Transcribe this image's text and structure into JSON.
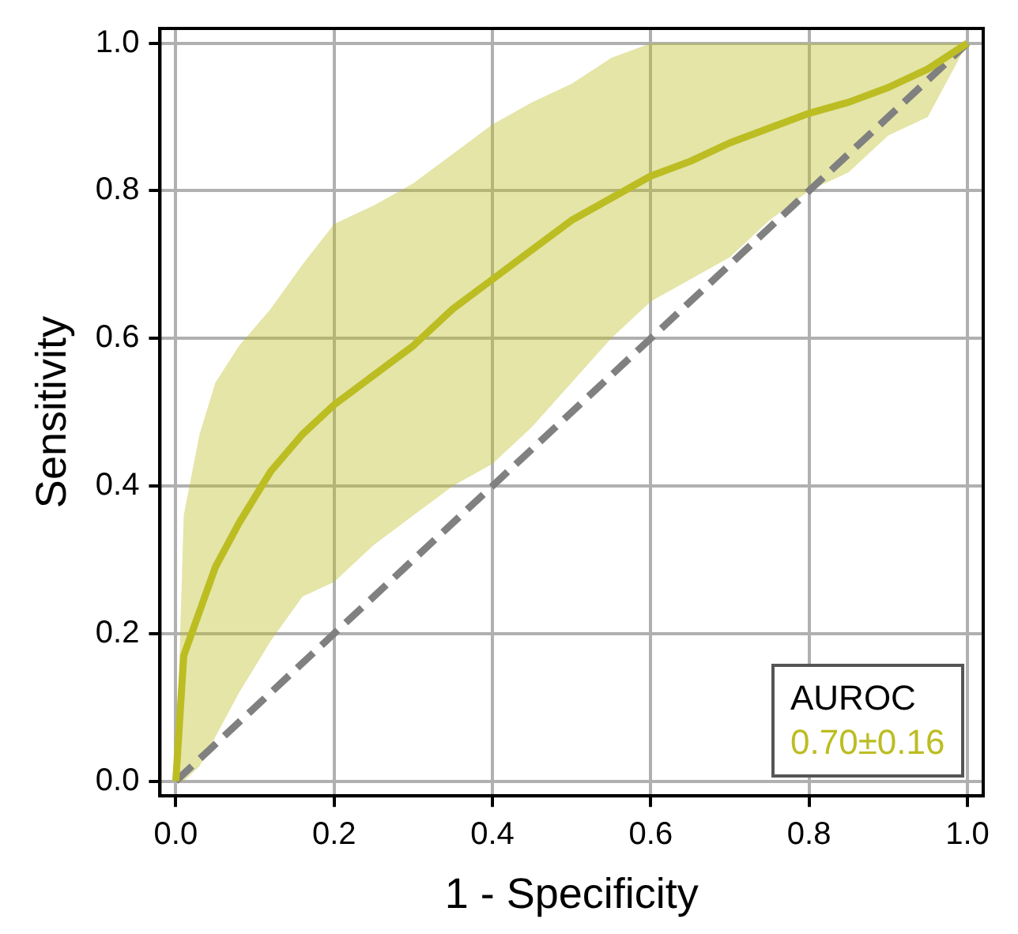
{
  "chart_data": {
    "type": "line",
    "xlabel": "1 - Specificity",
    "ylabel": "Sensitivity",
    "legend_title": "AUROC",
    "legend": "bottom right",
    "grid": true,
    "x": [
      0,
      0.01,
      0.03,
      0.05,
      0.08,
      0.12,
      0.16,
      0.2,
      0.25,
      0.3,
      0.35,
      0.4,
      0.45,
      0.5,
      0.55,
      0.6,
      0.65,
      0.7,
      0.75,
      0.8,
      0.85,
      0.9,
      0.95,
      1.0
    ],
    "xlim": [
      -0.02,
      1.02
    ],
    "ylim": [
      -0.02,
      1.02
    ],
    "xticks": [
      {
        "value": 0,
        "label": "0.0"
      },
      0.2,
      0.4,
      0.6,
      0.8,
      {
        "value": 1,
        "label": "1.0"
      }
    ],
    "yticks": [
      {
        "value": 0,
        "label": "0.0"
      },
      0.2,
      0.4,
      0.6,
      0.8,
      {
        "value": 1,
        "label": "1.0"
      }
    ],
    "series": [
      {
        "name": "0.70±0.16",
        "color": "#bcbd22",
        "line_style": "solid",
        "values": [
          0,
          0.17,
          0.23,
          0.29,
          0.35,
          0.42,
          0.47,
          0.51,
          0.55,
          0.59,
          0.64,
          0.68,
          0.72,
          0.76,
          0.79,
          0.82,
          0.84,
          0.865,
          0.885,
          0.905,
          0.92,
          0.94,
          0.965,
          1.0
        ],
        "lower": [
          0,
          0,
          0.02,
          0.06,
          0.12,
          0.19,
          0.25,
          0.27,
          0.32,
          0.36,
          0.4,
          0.43,
          0.48,
          0.54,
          0.6,
          0.65,
          0.68,
          0.71,
          0.76,
          0.8,
          0.825,
          0.875,
          0.9,
          1.0
        ],
        "upper": [
          0,
          0.36,
          0.47,
          0.54,
          0.59,
          0.64,
          0.7,
          0.755,
          0.78,
          0.81,
          0.85,
          0.89,
          0.92,
          0.945,
          0.98,
          1.0,
          1.0,
          1.0,
          1.0,
          1.0,
          1.0,
          1.0,
          1.0,
          1.0
        ]
      },
      {
        "color": "#808080",
        "line_style": "dashed",
        "x": [
          0,
          1
        ],
        "values": [
          0,
          1
        ]
      }
    ]
  }
}
